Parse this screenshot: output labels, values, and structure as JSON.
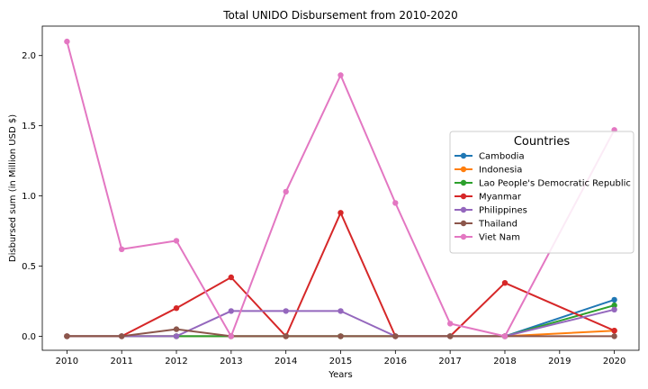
{
  "chart_data": {
    "type": "line",
    "title": "Total UNIDO Disbursement from 2010-2020",
    "xlabel": "Years",
    "ylabel": "Disbursed sum (in Million USD $)",
    "x": [
      2010,
      2011,
      2012,
      2013,
      2014,
      2015,
      2016,
      2017,
      2018,
      2019,
      2020
    ],
    "x_ticks": [
      "2010",
      "2011",
      "2012",
      "2013",
      "2014",
      "2015",
      "2016",
      "2017",
      "2018",
      "2019",
      "2020"
    ],
    "y_ticks": [
      "0.0",
      "0.5",
      "1.0",
      "1.5",
      "2.0"
    ],
    "xlim": [
      2009.55,
      2020.45
    ],
    "ylim": [
      -0.1,
      2.21
    ],
    "grid": false,
    "legend": {
      "title": "Countries",
      "placement": "center-right"
    },
    "series": [
      {
        "name": "Cambodia",
        "color": "#1f77b4",
        "x": [
          2010,
          2011,
          2012,
          2013,
          2014,
          2015,
          2016,
          2017,
          2018,
          2020
        ],
        "values": [
          0,
          0,
          0,
          0,
          0,
          0,
          0,
          0,
          0,
          0.26
        ]
      },
      {
        "name": "Indonesia",
        "color": "#ff7f0e",
        "x": [
          2010,
          2011,
          2012,
          2013,
          2014,
          2015,
          2016,
          2017,
          2018,
          2020
        ],
        "values": [
          0,
          0,
          0,
          0,
          0,
          0,
          0,
          0,
          0,
          0.04
        ]
      },
      {
        "name": "Lao People's Democratic Republic",
        "color": "#2ca02c",
        "x": [
          2010,
          2011,
          2012,
          2013,
          2014,
          2015,
          2016,
          2017,
          2018,
          2020
        ],
        "values": [
          0,
          0,
          0,
          0,
          0,
          0,
          0,
          0,
          0,
          0.22
        ]
      },
      {
        "name": "Myanmar",
        "color": "#d62728",
        "x": [
          2010,
          2011,
          2012,
          2013,
          2014,
          2015,
          2016,
          2017,
          2018,
          2020
        ],
        "values": [
          0,
          0,
          0.2,
          0.42,
          0,
          0.88,
          0,
          0,
          0.38,
          0.04
        ]
      },
      {
        "name": "Philippines",
        "color": "#9467bd",
        "x": [
          2010,
          2011,
          2012,
          2013,
          2014,
          2015,
          2016,
          2017,
          2018,
          2020
        ],
        "values": [
          0,
          0,
          0,
          0.18,
          0.18,
          0.18,
          0,
          0,
          0,
          0.19
        ]
      },
      {
        "name": "Thailand",
        "color": "#8c564b",
        "x": [
          2010,
          2011,
          2012,
          2013,
          2014,
          2015,
          2016,
          2017,
          2018,
          2020
        ],
        "values": [
          0,
          0,
          0.05,
          0,
          0,
          0,
          0,
          0,
          0,
          0
        ]
      },
      {
        "name": "Viet Nam",
        "color": "#e377c2",
        "x": [
          2010,
          2011,
          2012,
          2013,
          2014,
          2015,
          2016,
          2017,
          2018,
          2020
        ],
        "values": [
          2.1,
          0.62,
          0.68,
          0,
          1.03,
          1.86,
          0.95,
          0.09,
          0,
          1.47
        ]
      }
    ]
  }
}
